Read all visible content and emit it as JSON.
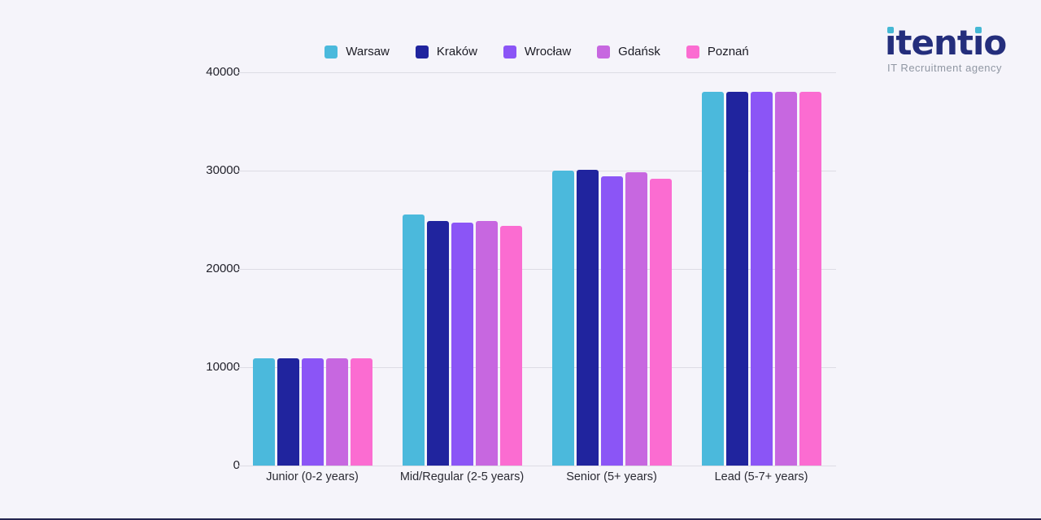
{
  "brand": {
    "logo_text": "itentio",
    "logo_subtitle": "IT Recruitment agency"
  },
  "colors": {
    "background": "#f5f4fa",
    "gridline": "#dcdce4",
    "logo_navy": "#242e7c",
    "logo_dot_teal": "#45b8d4",
    "subtitle_gray": "#9097a3",
    "footer_strip": "#23254f"
  },
  "chart_data": {
    "type": "bar",
    "title": "",
    "xlabel": "",
    "ylabel": "",
    "categories": [
      "Junior (0-2 years)",
      "Mid/Regular (2-5 years)",
      "Senior (5+ years)",
      "Lead (5-7+ years)"
    ],
    "series": [
      {
        "name": "Warsaw",
        "color": "#4bb9dc",
        "values": [
          10900,
          25500,
          30000,
          38000
        ]
      },
      {
        "name": "Kraków",
        "color": "#20249e",
        "values": [
          10900,
          24900,
          30100,
          38000
        ]
      },
      {
        "name": "Wrocław",
        "color": "#8b55f6",
        "values": [
          10900,
          24700,
          29400,
          38000
        ]
      },
      {
        "name": "Gdańsk",
        "color": "#c767e0",
        "values": [
          10900,
          24900,
          29800,
          38000
        ]
      },
      {
        "name": "Poznań",
        "color": "#fb6cd1",
        "values": [
          10900,
          24400,
          29200,
          38000
        ]
      }
    ],
    "ylim": [
      0,
      40000
    ],
    "yticks": [
      0,
      10000,
      20000,
      30000,
      40000
    ],
    "grid": true,
    "legend_position": "top"
  }
}
